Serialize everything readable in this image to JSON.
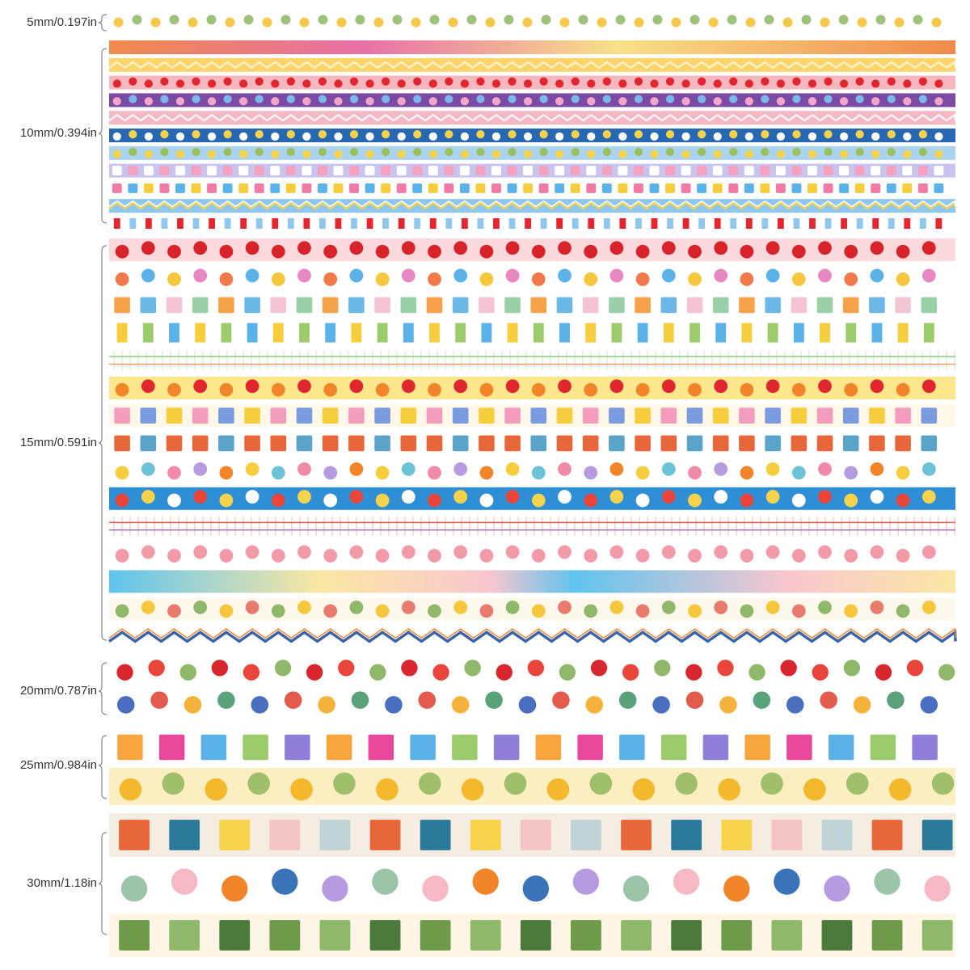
{
  "groups": [
    {
      "label": "5mm/0.197in"
    },
    {
      "label": "10mm/0.394in"
    },
    {
      "label": "15mm/0.591in"
    },
    {
      "label": "20mm/0.787in"
    },
    {
      "label": "25mm/0.984in"
    },
    {
      "label": "30mm/1.18in"
    }
  ]
}
